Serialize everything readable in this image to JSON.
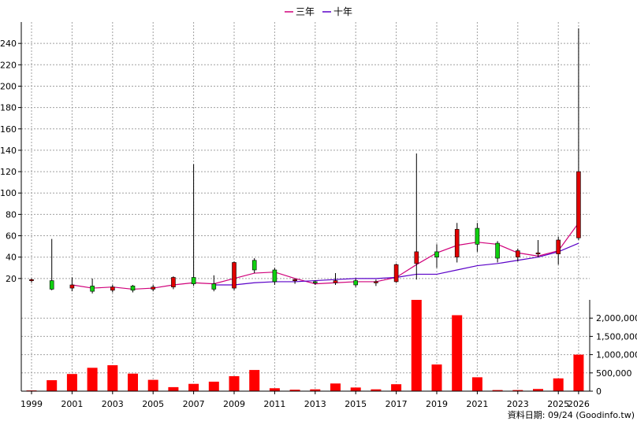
{
  "chart_data": [
    {
      "type": "candlestick",
      "legend": [
        {
          "name": "三年",
          "color": "#d0007a"
        },
        {
          "name": "十年",
          "color": "#5a00c8"
        }
      ],
      "y_ticks": [
        20,
        40,
        60,
        80,
        100,
        120,
        140,
        160,
        180,
        200,
        220,
        240
      ],
      "ylim": [
        0,
        260
      ],
      "grid": true,
      "legend_position": "top-center",
      "colors": {
        "up": "#e00000",
        "down": "#10d010",
        "wick": "#000000"
      },
      "candles": [
        {
          "x": 1999,
          "open": 18,
          "close": 19,
          "high": 20,
          "low": 16
        },
        {
          "x": 2000,
          "open": 18,
          "close": 10,
          "high": 57,
          "low": 9
        },
        {
          "x": 2001,
          "open": 11,
          "close": 14,
          "high": 21,
          "low": 8
        },
        {
          "x": 2002,
          "open": 13,
          "close": 8,
          "high": 20,
          "low": 6
        },
        {
          "x": 2003,
          "open": 9,
          "close": 12,
          "high": 14,
          "low": 7
        },
        {
          "x": 2004,
          "open": 13,
          "close": 9,
          "high": 14,
          "low": 7
        },
        {
          "x": 2005,
          "open": 10,
          "close": 12,
          "high": 14,
          "low": 8
        },
        {
          "x": 2006,
          "open": 12,
          "close": 21,
          "high": 22,
          "low": 10
        },
        {
          "x": 2007,
          "open": 21,
          "close": 15,
          "high": 127,
          "low": 13
        },
        {
          "x": 2008,
          "open": 15,
          "close": 10,
          "high": 23,
          "low": 8
        },
        {
          "x": 2009,
          "open": 11,
          "close": 35,
          "high": 36,
          "low": 9
        },
        {
          "x": 2010,
          "open": 37,
          "close": 28,
          "high": 39,
          "low": 25
        },
        {
          "x": 2011,
          "open": 28,
          "close": 17,
          "high": 30,
          "low": 14
        },
        {
          "x": 2012,
          "open": 18,
          "close": 19,
          "high": 20,
          "low": 15
        },
        {
          "x": 2013,
          "open": 17,
          "close": 16,
          "high": 18,
          "low": 14
        },
        {
          "x": 2014,
          "open": 16,
          "close": 18,
          "high": 25,
          "low": 14
        },
        {
          "x": 2015,
          "open": 18,
          "close": 14,
          "high": 20,
          "low": 12
        },
        {
          "x": 2016,
          "open": 16,
          "close": 17,
          "high": 19,
          "low": 13
        },
        {
          "x": 2017,
          "open": 17,
          "close": 33,
          "high": 34,
          "low": 16
        },
        {
          "x": 2018,
          "open": 34,
          "close": 45,
          "high": 137,
          "low": 19
        },
        {
          "x": 2019,
          "open": 45,
          "close": 40,
          "high": 52,
          "low": 30
        },
        {
          "x": 2020,
          "open": 40,
          "close": 66,
          "high": 72,
          "low": 35
        },
        {
          "x": 2021,
          "open": 67,
          "close": 52,
          "high": 72,
          "low": 45
        },
        {
          "x": 2022,
          "open": 53,
          "close": 39,
          "high": 55,
          "low": 35
        },
        {
          "x": 2023,
          "open": 40,
          "close": 46,
          "high": 48,
          "low": 36
        },
        {
          "x": 2024,
          "open": 43,
          "close": 44,
          "high": 56,
          "low": 40
        },
        {
          "x": 2025,
          "open": 43,
          "close": 56,
          "high": 59,
          "low": 33
        },
        {
          "x": 2026,
          "open": 58,
          "close": 120,
          "high": 254,
          "low": 56
        }
      ],
      "series": [
        {
          "name": "三年",
          "x": [
            2001,
            2002,
            2003,
            2004,
            2005,
            2006,
            2007,
            2008,
            2009,
            2010,
            2011,
            2012,
            2013,
            2014,
            2015,
            2016,
            2017,
            2018,
            2019,
            2020,
            2021,
            2022,
            2023,
            2024,
            2025,
            2026
          ],
          "values": [
            14,
            11,
            12,
            10,
            11,
            14,
            16,
            15,
            20,
            25,
            26,
            20,
            15,
            16,
            17,
            17,
            21,
            33,
            44,
            51,
            54,
            52,
            44,
            41,
            46,
            72
          ]
        },
        {
          "name": "十年",
          "x": [
            2008,
            2009,
            2010,
            2011,
            2012,
            2013,
            2014,
            2015,
            2016,
            2017,
            2018,
            2019,
            2020,
            2021,
            2022,
            2023,
            2024,
            2025,
            2026
          ],
          "values": [
            14,
            14,
            16,
            17,
            17,
            18,
            19,
            20,
            20,
            21,
            24,
            24,
            28,
            32,
            34,
            37,
            40,
            45,
            53
          ]
        }
      ]
    },
    {
      "type": "bar",
      "color": "#ff0000",
      "y_ticks": [
        "0",
        "500,000",
        "1,000,000",
        "1,500,000",
        "2,000,000"
      ],
      "y_tick_values": [
        0,
        500000,
        1000000,
        1500000,
        2000000
      ],
      "ylim": [
        0,
        2500000
      ],
      "x_tick_labels": [
        "1999",
        "2001",
        "2003",
        "2005",
        "2007",
        "2009",
        "2011",
        "2013",
        "2015",
        "2017",
        "2019",
        "2021",
        "2023",
        "2025",
        "2026"
      ],
      "x_tick_years": [
        1999,
        2001,
        2003,
        2005,
        2007,
        2009,
        2011,
        2013,
        2015,
        2017,
        2019,
        2021,
        2023,
        2025,
        2026
      ],
      "x": [
        1999,
        2000,
        2001,
        2002,
        2003,
        2004,
        2005,
        2006,
        2007,
        2008,
        2009,
        2010,
        2011,
        2012,
        2013,
        2014,
        2015,
        2016,
        2017,
        2018,
        2019,
        2020,
        2021,
        2022,
        2023,
        2024,
        2025,
        2026
      ],
      "values": [
        20000,
        300000,
        470000,
        640000,
        710000,
        480000,
        310000,
        110000,
        200000,
        260000,
        410000,
        580000,
        80000,
        40000,
        50000,
        210000,
        100000,
        50000,
        190000,
        2500000,
        730000,
        2080000,
        380000,
        30000,
        30000,
        60000,
        350000,
        1000000
      ]
    }
  ],
  "source_text": "資料日期: 09/24  (Goodinfo.tw)"
}
